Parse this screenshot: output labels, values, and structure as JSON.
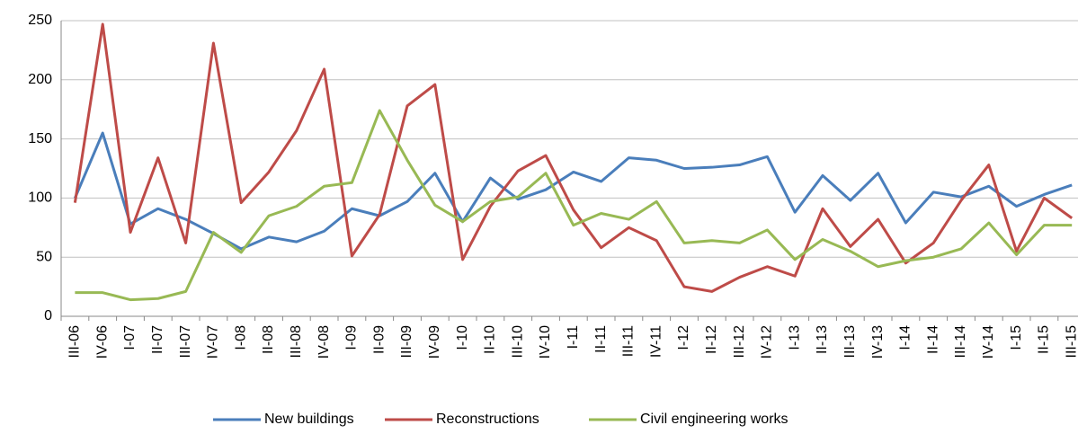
{
  "chart_data": {
    "type": "line",
    "categories": [
      "III-06",
      "IV-06",
      "I-07",
      "II-07",
      "III-07",
      "IV-07",
      "I-08",
      "II-08",
      "III-08",
      "IV-08",
      "I-09",
      "II-09",
      "III-09",
      "IV-09",
      "I-10",
      "II-10",
      "III-10",
      "IV-10",
      "I-11",
      "II-11",
      "III-11",
      "IV-11",
      "I-12",
      "II-12",
      "III-12",
      "IV-12",
      "I-13",
      "II-13",
      "III-13",
      "IV-13",
      "I-14",
      "II-14",
      "III-14",
      "IV-14",
      "I-15",
      "II-15",
      "III-15"
    ],
    "series": [
      {
        "name": "New buildings",
        "color": "#4a7ebb",
        "values": [
          100,
          155,
          78,
          91,
          82,
          70,
          57,
          67,
          63,
          72,
          91,
          85,
          97,
          121,
          80,
          117,
          99,
          107,
          122,
          114,
          134,
          132,
          125,
          126,
          128,
          135,
          88,
          119,
          98,
          121,
          79,
          105,
          101,
          110,
          93,
          103,
          111
        ]
      },
      {
        "name": "Reconstructions",
        "color": "#be4b48",
        "values": [
          96,
          247,
          71,
          134,
          62,
          231,
          96,
          122,
          157,
          209,
          51,
          86,
          178,
          196,
          48,
          93,
          123,
          136,
          90,
          58,
          75,
          64,
          25,
          21,
          33,
          42,
          34,
          91,
          59,
          82,
          45,
          62,
          98,
          128,
          55,
          100,
          83
        ]
      },
      {
        "name": "Civil engineering works",
        "color": "#98b954",
        "values": [
          20,
          20,
          14,
          15,
          21,
          71,
          54,
          85,
          93,
          110,
          113,
          174,
          132,
          94,
          80,
          97,
          101,
          121,
          77,
          87,
          82,
          97,
          62,
          64,
          62,
          73,
          48,
          65,
          55,
          42,
          47,
          50,
          57,
          79,
          52,
          77,
          77
        ]
      }
    ],
    "ylim": [
      0,
      250
    ],
    "yticks": [
      0,
      50,
      100,
      150,
      200,
      250
    ],
    "grid": true,
    "legend": "bottom"
  }
}
